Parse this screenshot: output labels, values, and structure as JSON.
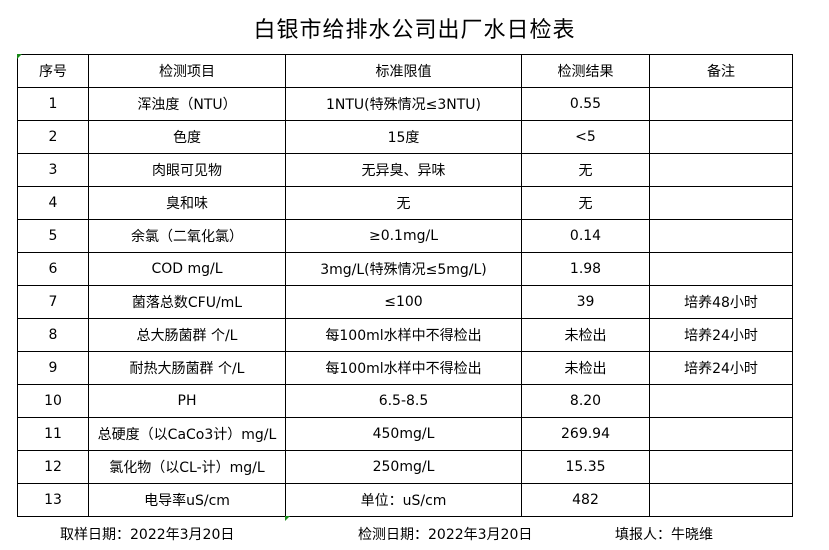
{
  "title": "白银市给排水公司出厂水日检表",
  "headers": [
    "序号",
    "检测项目",
    "标准限值",
    "检测结果",
    "备注"
  ],
  "rows": [
    [
      "1",
      "浑浊度（NTU）",
      "1NTU(特殊情况≤3NTU)",
      "0.55",
      ""
    ],
    [
      "2",
      "色度",
      "15度",
      "<5",
      ""
    ],
    [
      "3",
      "肉眼可见物",
      "无异臭、异味",
      "无",
      ""
    ],
    [
      "4",
      "臭和味",
      "无",
      "无",
      ""
    ],
    [
      "5",
      "余氯（二氧化氯）",
      "≥0.1mg/L",
      "0.14",
      ""
    ],
    [
      "6",
      "COD          mg/L",
      "3mg/L(特殊情况≤5mg/L)",
      "1.98",
      ""
    ],
    [
      "7",
      "菌落总数CFU/mL",
      "≤100",
      "39",
      "培养48小时"
    ],
    [
      "8",
      "总大肠菌群 个/L",
      "每100ml水样中不得检出",
      "未检出",
      "培养24小时"
    ],
    [
      "9",
      "耐热大肠菌群 个/L",
      "每100ml水样中不得检出",
      "未检出",
      "培养24小时"
    ],
    [
      "10",
      "PH",
      "6.5-8.5",
      "8.20",
      ""
    ],
    [
      "11",
      "总硬度（以CaCo3计）mg/L",
      "450mg/L",
      "269.94",
      ""
    ],
    [
      "12",
      "氯化物（以CL-计）mg/L",
      "250mg/L",
      "15.35",
      ""
    ],
    [
      "13",
      "电导率uS/cm",
      "单位：uS/cm",
      "482",
      ""
    ]
  ],
  "footer": {
    "sample_date": "取样日期：2022年3月20日",
    "test_date": "检测日期：2022年3月20日",
    "reporter": "填报人：牛晓维"
  }
}
